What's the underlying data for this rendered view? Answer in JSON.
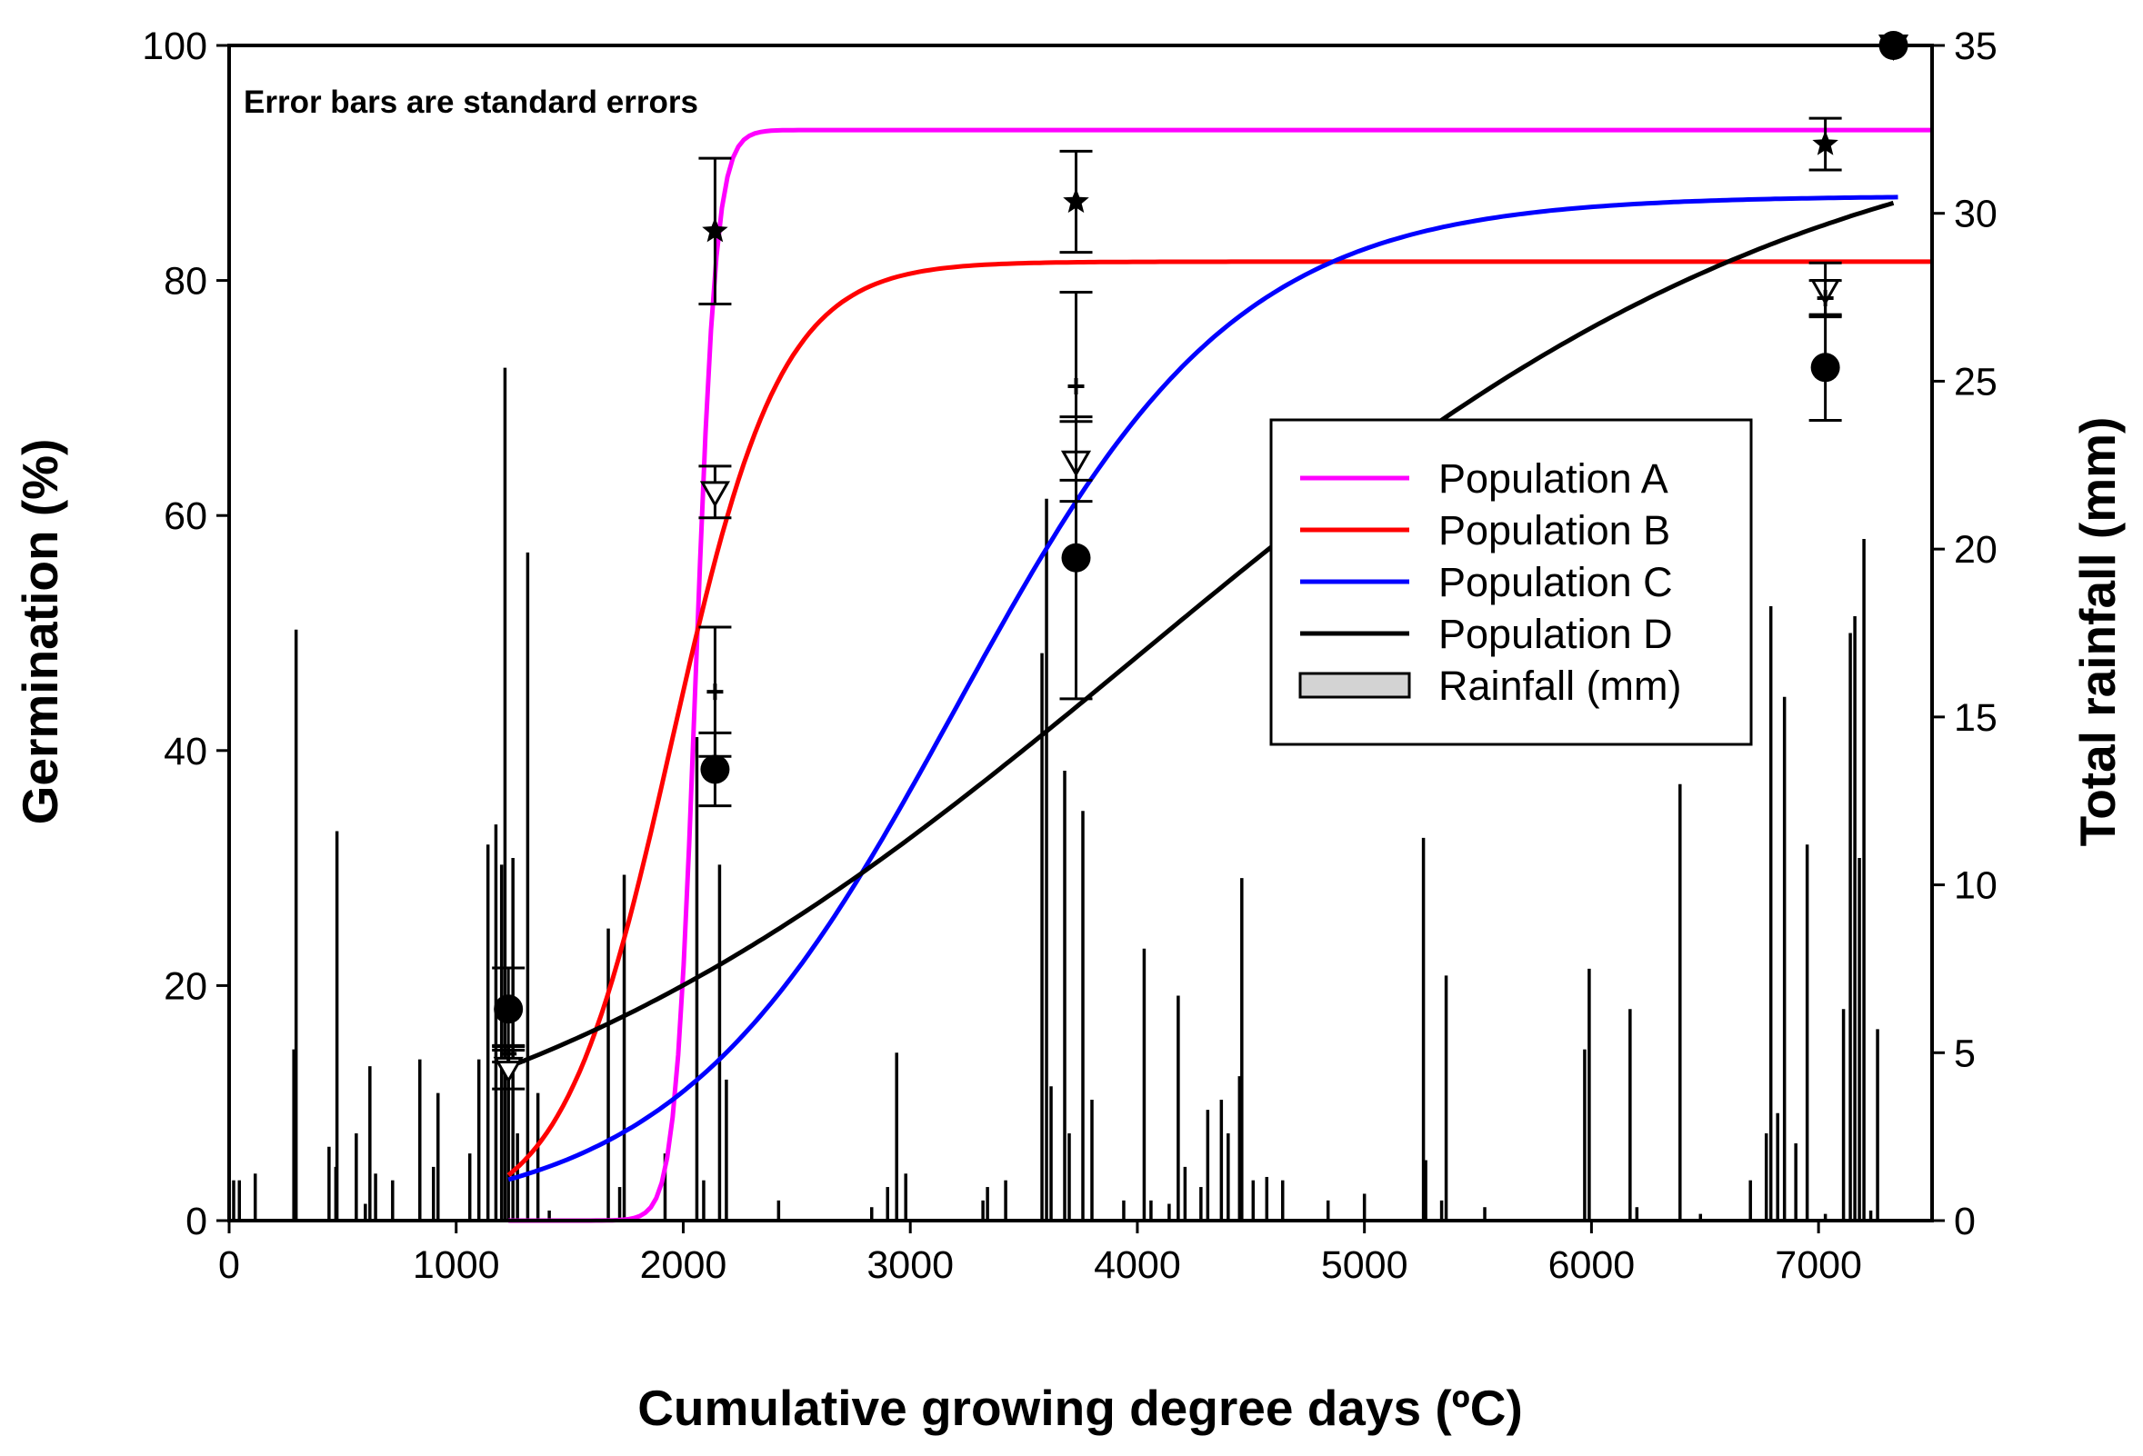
{
  "chart_data": {
    "type": "line",
    "annotation": "Error bars are standard errors",
    "xlabel": "Cumulative growing degree days (ºC)",
    "ylabel_left": "Germination (%)",
    "ylabel_right": "Total rainfall (mm)",
    "xlim": [
      0,
      7500
    ],
    "ylim_left": [
      0,
      100
    ],
    "ylim_right": [
      0,
      35
    ],
    "xticks": [
      "0",
      "1000",
      "2000",
      "3000",
      "4000",
      "5000",
      "6000",
      "7000"
    ],
    "yticks_left": [
      "0",
      "20",
      "40",
      "60",
      "80",
      "100"
    ],
    "yticks_right": [
      "0",
      "5",
      "10",
      "15",
      "20",
      "25",
      "30",
      "35"
    ],
    "legend": {
      "position": "center-right",
      "entries": [
        {
          "label": "Population A",
          "color": "#ff00ff",
          "kind": "line"
        },
        {
          "label": "Population B",
          "color": "#ff0000",
          "kind": "line"
        },
        {
          "label": "Population C",
          "color": "#0000ff",
          "kind": "line"
        },
        {
          "label": "Population D",
          "color": "#000000",
          "kind": "line"
        },
        {
          "label": "Rainfall (mm)",
          "color": "#d3d3d3",
          "kind": "box"
        }
      ]
    },
    "series": [
      {
        "name": "Population A",
        "color": "#ff00ff",
        "model": "sigmoid",
        "a": 92.8,
        "x0": 2055,
        "b": 45,
        "x_start": 1230,
        "x_end": 7500
      },
      {
        "name": "Population B",
        "color": "#ff0000",
        "model": "sigmoid",
        "a": 81.6,
        "x0": 1950,
        "b": 240,
        "x_start": 1230,
        "x_end": 7500
      },
      {
        "name": "Population C",
        "color": "#0000ff",
        "model": "sigmoid",
        "a": 87.2,
        "x0": 3200,
        "b": 620,
        "x_start": 1230,
        "x_end": 7350
      },
      {
        "name": "Population D",
        "color": "#000000",
        "model": "sigmoid",
        "a": 96,
        "x0": 4000,
        "b": 1500,
        "x_start": 1200,
        "x_end": 7330
      }
    ],
    "observations": [
      {
        "population": "A",
        "marker": "star",
        "points": [
          {
            "x": 2140,
            "y": 84.2,
            "se": 6.2
          },
          {
            "x": 3730,
            "y": 86.7,
            "se": 4.3
          },
          {
            "x": 7030,
            "y": 91.6,
            "se": 2.2
          },
          {
            "x": 7330,
            "y": 100,
            "se": 0
          }
        ]
      },
      {
        "population": "B",
        "marker": "triangle-down",
        "points": [
          {
            "x": 1230,
            "y": 13,
            "se": 1.8
          },
          {
            "x": 2140,
            "y": 62,
            "se": 2.2
          },
          {
            "x": 3730,
            "y": 64.6,
            "se": 3.4
          },
          {
            "x": 7030,
            "y": 79.2,
            "se": 2.3
          },
          {
            "x": 7330,
            "y": 100,
            "se": 0
          }
        ]
      },
      {
        "population": "C",
        "marker": "plus",
        "points": [
          {
            "x": 1230,
            "y": 14.2,
            "se": 0.7
          },
          {
            "x": 2140,
            "y": 45,
            "se": 5.5
          },
          {
            "x": 3730,
            "y": 71,
            "se": 8
          },
          {
            "x": 7030,
            "y": 78.5,
            "se": 1.5
          }
        ]
      },
      {
        "population": "D",
        "marker": "circle",
        "points": [
          {
            "x": 1230,
            "y": 18,
            "se": 3.5
          },
          {
            "x": 2140,
            "y": 38.4,
            "se": 3.1
          },
          {
            "x": 3730,
            "y": 56.4,
            "se": 12
          },
          {
            "x": 7030,
            "y": 72.6,
            "se": 4.5
          },
          {
            "x": 7330,
            "y": 100,
            "se": 0
          }
        ]
      }
    ],
    "rainfall_mm": [
      [
        20,
        1.2
      ],
      [
        45,
        1.2
      ],
      [
        115,
        1.4
      ],
      [
        285,
        5.1
      ],
      [
        295,
        17.6
      ],
      [
        440,
        2.2
      ],
      [
        470,
        1.6
      ],
      [
        475,
        11.6
      ],
      [
        560,
        2.6
      ],
      [
        600,
        0.5
      ],
      [
        620,
        4.6
      ],
      [
        645,
        1.4
      ],
      [
        720,
        1.2
      ],
      [
        840,
        4.8
      ],
      [
        900,
        1.6
      ],
      [
        920,
        3.8
      ],
      [
        1060,
        2
      ],
      [
        1100,
        4.8
      ],
      [
        1140,
        11.2
      ],
      [
        1175,
        11.8
      ],
      [
        1200,
        10.6
      ],
      [
        1215,
        25.4
      ],
      [
        1230,
        4.2
      ],
      [
        1250,
        10.8
      ],
      [
        1270,
        2.6
      ],
      [
        1315,
        19.9
      ],
      [
        1360,
        3.8
      ],
      [
        1410,
        0.3
      ],
      [
        1670,
        8.7
      ],
      [
        1720,
        1
      ],
      [
        1740,
        10.3
      ],
      [
        1920,
        2
      ],
      [
        2060,
        14.4
      ],
      [
        2090,
        1.2
      ],
      [
        2160,
        10.6
      ],
      [
        2190,
        4.2
      ],
      [
        2420,
        0.6
      ],
      [
        2830,
        0.4
      ],
      [
        2900,
        1
      ],
      [
        2940,
        5
      ],
      [
        2980,
        1.4
      ],
      [
        3320,
        0.6
      ],
      [
        3340,
        1
      ],
      [
        3420,
        1.2
      ],
      [
        3580,
        16.9
      ],
      [
        3600,
        21.5
      ],
      [
        3620,
        4
      ],
      [
        3680,
        13.4
      ],
      [
        3700,
        2.6
      ],
      [
        3760,
        12.2
      ],
      [
        3800,
        3.6
      ],
      [
        3940,
        0.6
      ],
      [
        4030,
        8.1
      ],
      [
        4060,
        0.6
      ],
      [
        4140,
        0.5
      ],
      [
        4180,
        6.7
      ],
      [
        4210,
        1.6
      ],
      [
        4280,
        1
      ],
      [
        4310,
        3.3
      ],
      [
        4370,
        3.6
      ],
      [
        4400,
        2.6
      ],
      [
        4450,
        4.3
      ],
      [
        4460,
        10.2
      ],
      [
        4510,
        1.2
      ],
      [
        4570,
        1.3
      ],
      [
        4640,
        1.2
      ],
      [
        4840,
        0.6
      ],
      [
        5000,
        0.8
      ],
      [
        5260,
        11.4
      ],
      [
        5270,
        1.8
      ],
      [
        5340,
        0.6
      ],
      [
        5360,
        7.3
      ],
      [
        5530,
        0.4
      ],
      [
        5970,
        5.1
      ],
      [
        5990,
        7.5
      ],
      [
        6170,
        6.3
      ],
      [
        6200,
        0.4
      ],
      [
        6390,
        13
      ],
      [
        6480,
        0.2
      ],
      [
        6700,
        1.2
      ],
      [
        6770,
        2.6
      ],
      [
        6790,
        18.3
      ],
      [
        6820,
        3.2
      ],
      [
        6850,
        15.6
      ],
      [
        6900,
        2.3
      ],
      [
        6950,
        11.2
      ],
      [
        7030,
        0.2
      ],
      [
        7110,
        6.3
      ],
      [
        7140,
        17.5
      ],
      [
        7160,
        18
      ],
      [
        7180,
        10.8
      ],
      [
        7200,
        20.3
      ],
      [
        7230,
        0.3
      ],
      [
        7260,
        5.7
      ]
    ]
  }
}
